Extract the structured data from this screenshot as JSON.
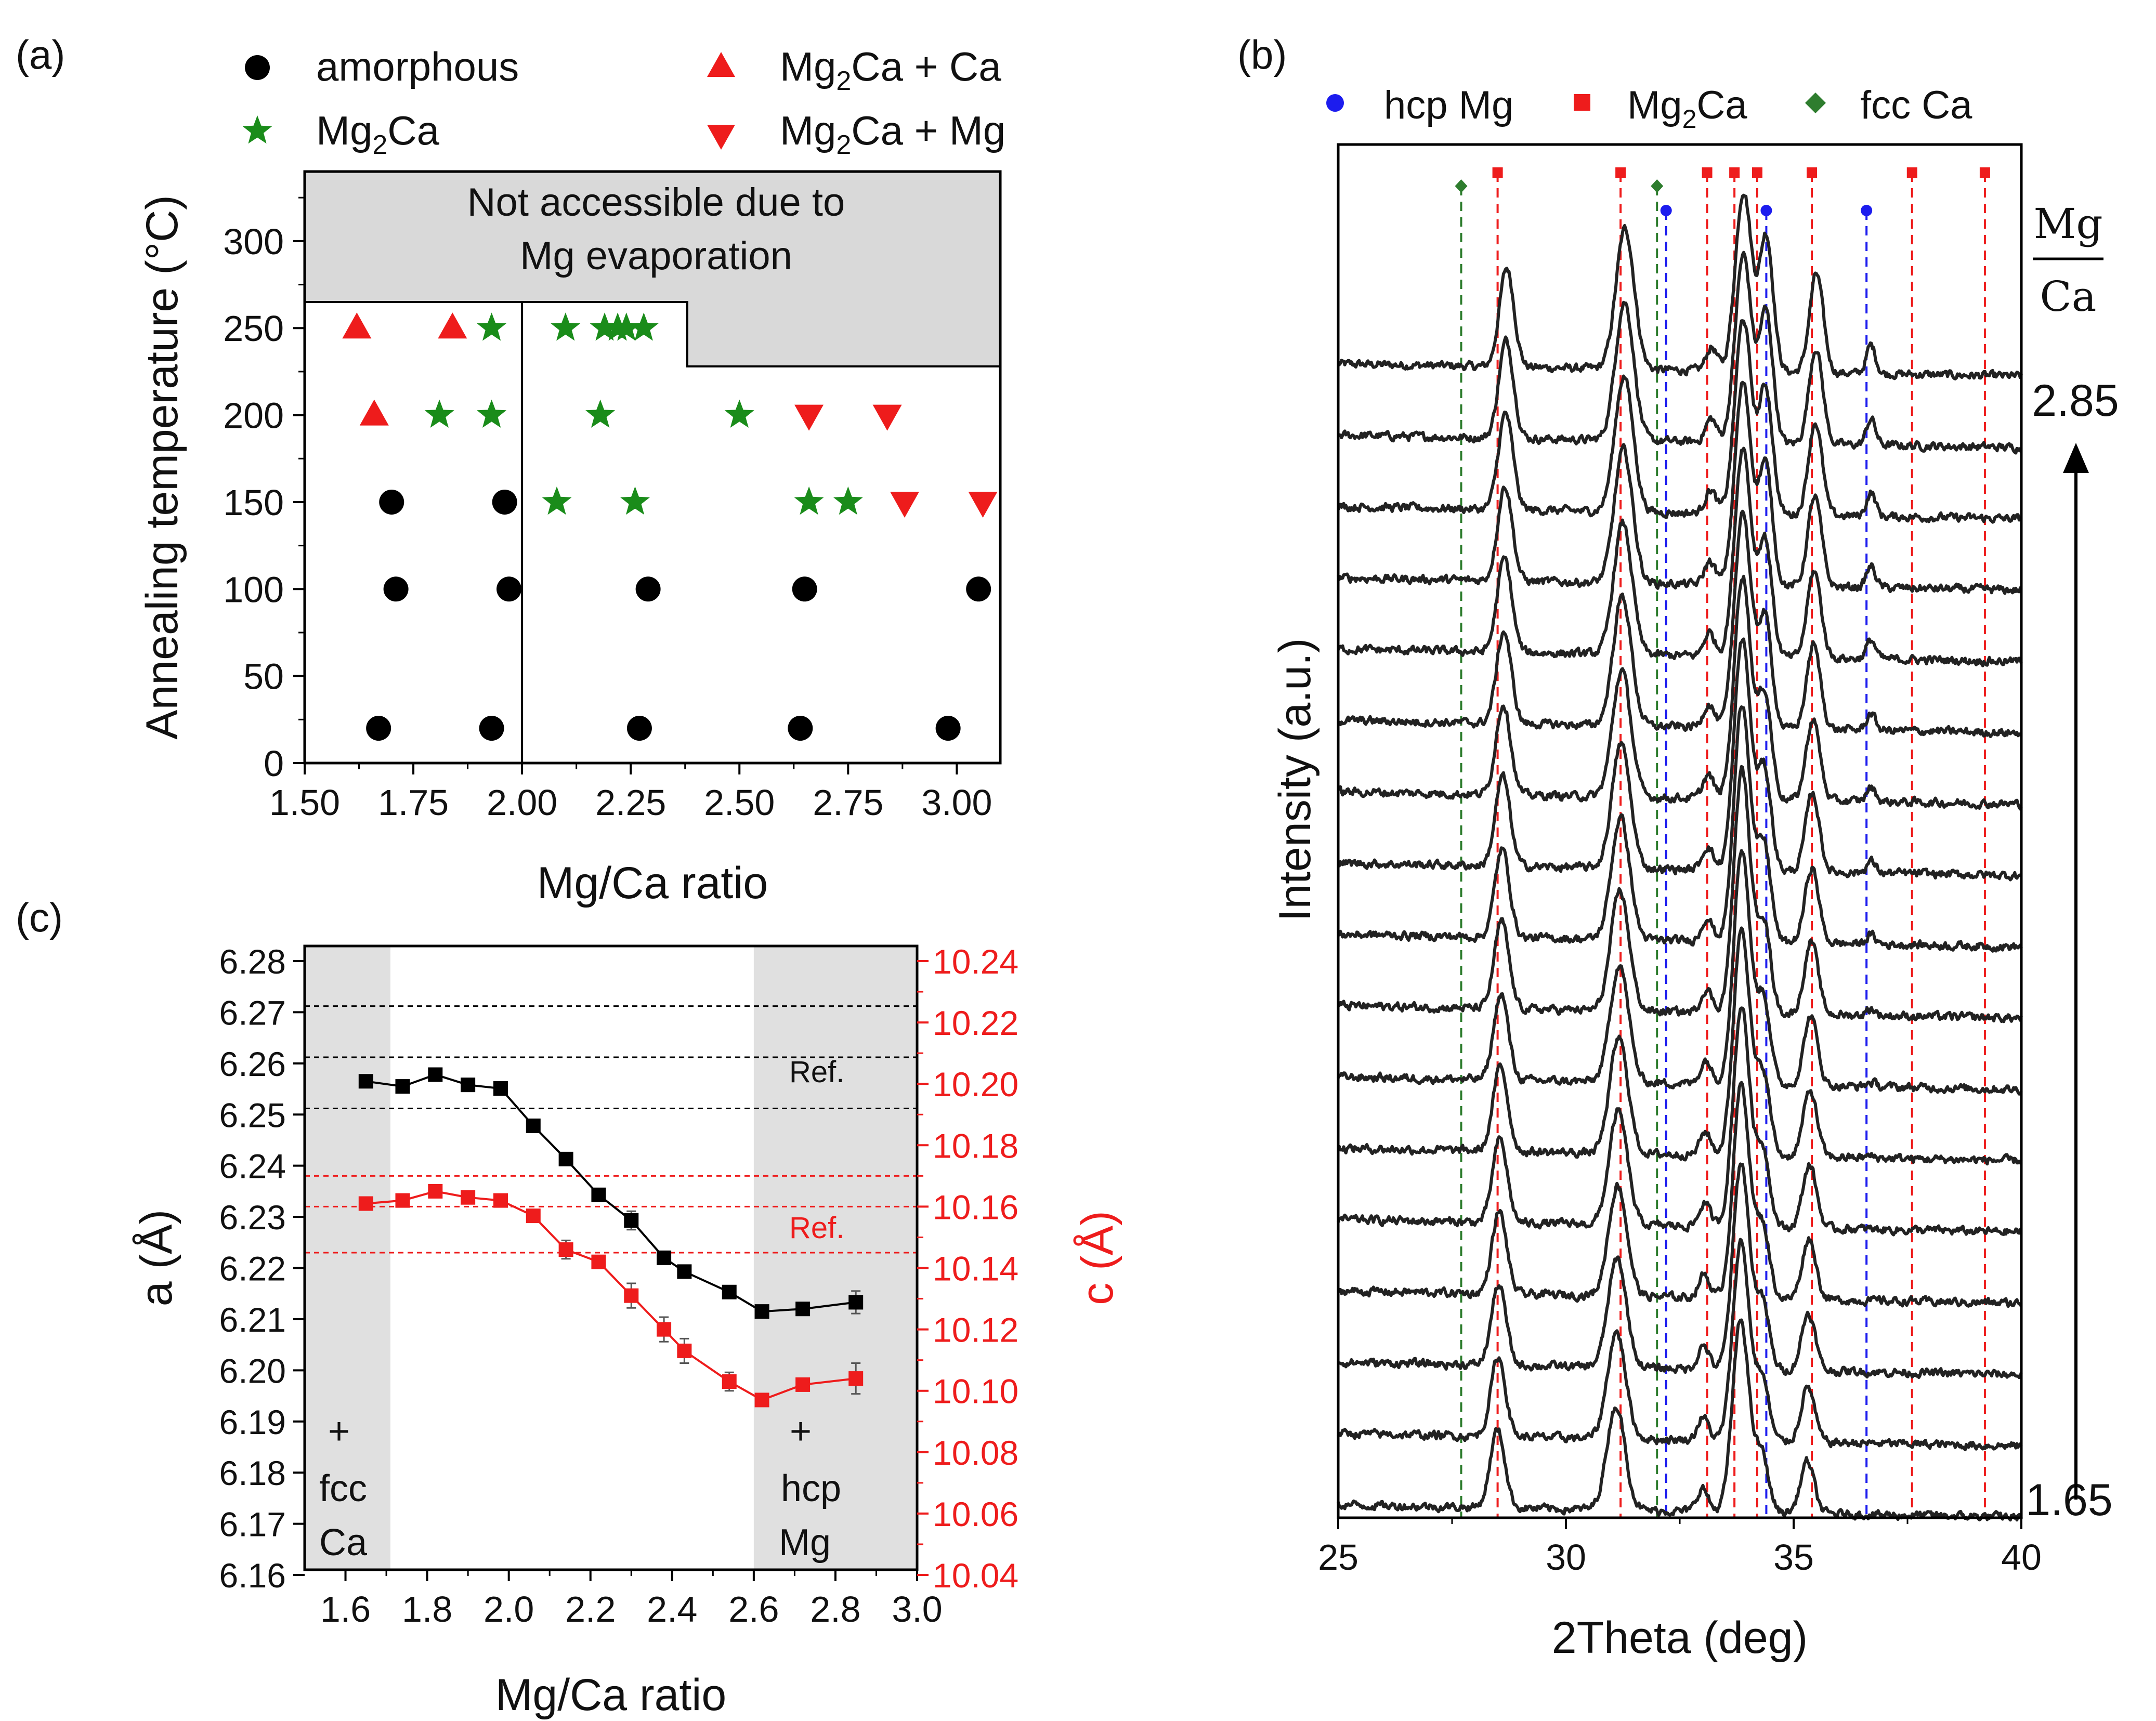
{
  "colors": {
    "black": "#000000",
    "green": "#1a8c1a",
    "red": "#ee1c1c",
    "blue": "#1c1cee",
    "darkgreen": "#2e7d2e",
    "gray": "#d9d9d9",
    "grayband": "#e0e0e0"
  },
  "panel_a": {
    "label": "(a)",
    "legend": [
      {
        "pre": "amorphous",
        "sub": "",
        "post": "",
        "marker": "circle"
      },
      {
        "pre": "Mg",
        "sub": "2",
        "post": "Ca",
        "marker": "star"
      },
      {
        "pre": "Mg",
        "sub": "2",
        "post": "Ca + Ca",
        "marker": "tri-up"
      },
      {
        "pre": "Mg",
        "sub": "2",
        "post": "Ca + Mg",
        "marker": "tri-down"
      }
    ],
    "inaccessible_line1": "Not accessible due to",
    "inaccessible_line2": "Mg evaporation"
  },
  "panel_b": {
    "label": "(b)",
    "legend": [
      {
        "pre": "hcp Mg",
        "sub": "",
        "post": "",
        "marker": "circle"
      },
      {
        "pre": "Mg",
        "sub": "2",
        "post": "Ca",
        "marker": "square"
      },
      {
        "pre": "fcc Ca",
        "sub": "",
        "post": "",
        "marker": "diamond"
      }
    ],
    "ratio_num": "Mg",
    "ratio_den": "Ca",
    "top_label": "2.85",
    "bottom_label": "1.65"
  },
  "panel_c": {
    "label": "(c)",
    "ref_label": "Ref.",
    "left_band_label": [
      "+",
      "fcc",
      "Ca"
    ],
    "right_band_label": [
      "+",
      "hcp",
      "Mg"
    ]
  },
  "chart_data": [
    {
      "id": "a",
      "type": "scatter",
      "title": "",
      "xlabel": "Mg/Ca ratio",
      "ylabel": "Annealing temperature (°C)",
      "xlim": [
        1.5,
        3.1
      ],
      "ylim": [
        0,
        340
      ],
      "xticks": [
        "1.50",
        "1.75",
        "2.00",
        "2.25",
        "2.50",
        "2.75",
        "3.00"
      ],
      "yticks": [
        "0",
        "50",
        "100",
        "150",
        "200",
        "250",
        "300"
      ],
      "series": [
        {
          "name": "amorphous",
          "x": [
            1.67,
            1.93,
            2.27,
            2.64,
            2.98,
            1.71,
            1.97,
            2.29,
            2.65,
            3.05,
            1.7,
            1.96
          ],
          "y": [
            20,
            20,
            20,
            20,
            20,
            100,
            100,
            100,
            100,
            100,
            150,
            150
          ]
        },
        {
          "name": "Mg2Ca",
          "x": [
            1.93,
            2.1,
            2.19,
            2.22,
            2.24,
            2.28,
            1.81,
            1.93,
            2.18,
            2.5,
            2.08,
            2.26,
            2.66,
            2.75
          ],
          "y": [
            250,
            250,
            250,
            250,
            250,
            250,
            200,
            200,
            200,
            200,
            150,
            150,
            150,
            150
          ]
        },
        {
          "name": "Mg2Ca + Ca",
          "x": [
            1.62,
            1.84,
            1.66
          ],
          "y": [
            250,
            250,
            200
          ]
        },
        {
          "name": "Mg2Ca + Mg",
          "x": [
            2.66,
            2.84,
            2.88,
            3.06
          ],
          "y": [
            200,
            200,
            150,
            150
          ]
        }
      ],
      "divider_x": 2.0,
      "inaccessible_steps": [
        [
          1.5,
          265
        ],
        [
          2.38,
          265
        ],
        [
          2.38,
          228
        ],
        [
          3.1,
          228
        ]
      ]
    },
    {
      "id": "b",
      "type": "line",
      "title": "",
      "xlabel": "2Theta (deg)",
      "ylabel": "Intensity (a.u.)",
      "xlim": [
        25,
        40
      ],
      "xticks": [
        "25",
        "30",
        "35",
        "40"
      ],
      "n_patterns": 17,
      "ratio_range": [
        1.65,
        2.85
      ],
      "reference_peaks": {
        "hcp Mg": [
          32.2,
          34.4,
          36.6
        ],
        "Mg2Ca": [
          28.5,
          31.2,
          33.1,
          33.7,
          34.2,
          35.4,
          37.6,
          39.2
        ],
        "fcc Ca": [
          27.7,
          32.0
        ]
      },
      "peak_positions": [
        28.7,
        31.3,
        33.2,
        33.9,
        34.4,
        35.5,
        36.7
      ]
    },
    {
      "id": "c",
      "type": "line",
      "title": "",
      "xlabel": "Mg/Ca ratio",
      "ylabel": "a (Å)",
      "ylabel_right": "c (Å)",
      "xlim": [
        1.5,
        3.0
      ],
      "ylim": [
        6.155,
        6.285
      ],
      "ylim_right": [
        10.04,
        10.24
      ],
      "xticks": [
        "1.6",
        "1.8",
        "2.0",
        "2.2",
        "2.4",
        "2.6",
        "2.8",
        "3.0"
      ],
      "yticks": [
        "6.16",
        "6.17",
        "6.18",
        "6.19",
        "6.20",
        "6.21",
        "6.22",
        "6.23",
        "6.24",
        "6.25",
        "6.26",
        "6.27",
        "6.28"
      ],
      "yticks_right": [
        "10.04",
        "10.06",
        "10.08",
        "10.10",
        "10.12",
        "10.14",
        "10.16",
        "10.18",
        "10.20",
        "10.22",
        "10.24"
      ],
      "series": [
        {
          "name": "a",
          "axis": "left",
          "x": [
            1.65,
            1.74,
            1.82,
            1.9,
            1.98,
            2.06,
            2.14,
            2.22,
            2.3,
            2.38,
            2.43,
            2.54,
            2.62,
            2.72,
            2.85
          ],
          "y": [
            6.2565,
            6.2555,
            6.2578,
            6.2558,
            6.2551,
            6.2478,
            6.2413,
            6.2343,
            6.2293,
            6.222,
            6.2193,
            6.2153,
            6.2115,
            6.212,
            6.2133
          ],
          "err": [
            0,
            0,
            0,
            0,
            0,
            0,
            0,
            0,
            0.0018,
            0.0012,
            0.001,
            0,
            0,
            0,
            0.0022
          ]
        },
        {
          "name": "c",
          "axis": "right",
          "x": [
            1.65,
            1.74,
            1.82,
            1.9,
            1.98,
            2.06,
            2.14,
            2.22,
            2.3,
            2.38,
            2.43,
            2.54,
            2.62,
            2.72,
            2.85
          ],
          "y": [
            10.161,
            10.162,
            10.165,
            10.163,
            10.162,
            10.157,
            10.146,
            10.142,
            10.131,
            10.12,
            10.113,
            10.103,
            10.097,
            10.102,
            10.104
          ],
          "err": [
            0,
            0,
            0,
            0,
            0,
            0,
            0.003,
            0.002,
            0.004,
            0.004,
            0.004,
            0.003,
            0,
            0,
            0.005
          ]
        }
      ],
      "a_ref_lines": [
        6.2512,
        6.2612,
        6.2712
      ],
      "c_ref_lines": [
        10.145,
        10.16,
        10.17
      ],
      "shaded_bands": [
        [
          1.5,
          1.71
        ],
        [
          2.6,
          3.0
        ]
      ]
    }
  ]
}
